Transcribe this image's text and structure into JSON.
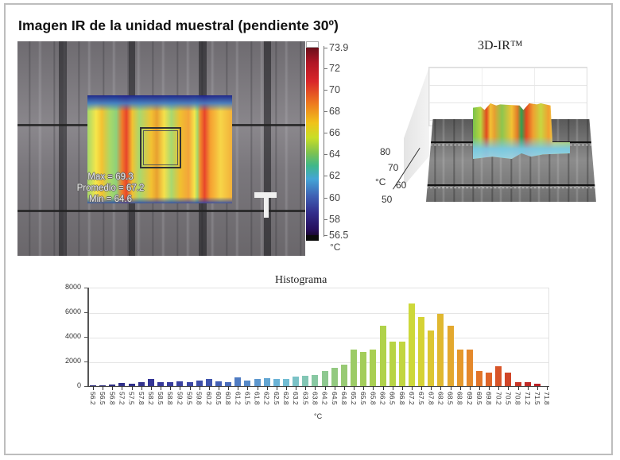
{
  "title": "Imagen IR de la unidad muestral (pendiente 30º)",
  "ir_image": {
    "stats": {
      "max": "Max = 69.3",
      "avg": "Promedio = 67.2",
      "min": "Min = 64.6"
    },
    "color_scale": {
      "ticks": [
        "73.9",
        "72",
        "70",
        "68",
        "66",
        "64",
        "62",
        "60",
        "58",
        "56.5"
      ],
      "unit": "°C",
      "max": 73.9,
      "min": 56.5
    }
  },
  "plot3d": {
    "title": "3D-IR™",
    "axis_ticks": [
      "80",
      "70",
      "60",
      "50"
    ],
    "axis_unit": "°C"
  },
  "colors": {
    "cold": "#2a1a6e",
    "mid": "#a8d870",
    "hot": "#c81f20"
  },
  "chart_data": {
    "type": "bar",
    "title": "Histograma",
    "xlabel": "°C",
    "ylabel": "",
    "ylim": [
      0,
      8000
    ],
    "yticks": [
      "8000",
      "6000",
      "4000",
      "2000",
      "0"
    ],
    "grid": true,
    "legend": null,
    "categories": [
      "56.2",
      "56.5",
      "56.8",
      "57.2",
      "57.5",
      "57.8",
      "58.2",
      "58.5",
      "58.8",
      "59.2",
      "59.5",
      "59.8",
      "60.2",
      "60.5",
      "60.8",
      "61.2",
      "61.5",
      "61.8",
      "62.2",
      "62.5",
      "62.8",
      "63.2",
      "63.5",
      "63.8",
      "64.2",
      "64.5",
      "64.8",
      "65.2",
      "65.5",
      "65.8",
      "66.2",
      "66.5",
      "66.8",
      "67.2",
      "67.5",
      "67.8",
      "68.2",
      "68.5",
      "68.8",
      "69.2",
      "69.5",
      "69.8",
      "70.2",
      "70.5",
      "70.8",
      "71.2",
      "71.5",
      "71.8"
    ],
    "values": [
      50,
      80,
      100,
      250,
      180,
      300,
      550,
      350,
      300,
      400,
      300,
      450,
      600,
      400,
      350,
      700,
      450,
      550,
      650,
      600,
      550,
      750,
      850,
      900,
      1200,
      1500,
      1750,
      3000,
      2800,
      3000,
      4900,
      3600,
      3600,
      6700,
      5600,
      4500,
      5900,
      4900,
      3000,
      3000,
      1200,
      1100,
      1600,
      1100,
      300,
      300,
      200,
      0
    ],
    "bar_colors": [
      "#2b2a7a",
      "#2b2a7a",
      "#2d2c80",
      "#30308a",
      "#30308a",
      "#33338e",
      "#343596",
      "#36399a",
      "#383d9d",
      "#3a42a0",
      "#3c47a4",
      "#3e4ea8",
      "#4055ad",
      "#4460b4",
      "#4a6dbb",
      "#4f7bc2",
      "#5689c8",
      "#5d97ce",
      "#63a6d3",
      "#6ab3d6",
      "#72bdd3",
      "#7ac2c6",
      "#82c6b4",
      "#88c8a2",
      "#8ec890",
      "#93c980",
      "#98ca74",
      "#9ccb66",
      "#a3cd5a",
      "#a9cf52",
      "#b0d24a",
      "#b8d445",
      "#c2d640",
      "#cdd83a",
      "#d5d235",
      "#dcc632",
      "#e0b830",
      "#e3a82e",
      "#e5982c",
      "#e4882b",
      "#e2762a",
      "#de6529",
      "#d85428",
      "#d04528",
      "#c83627",
      "#c02a26",
      "#b82024",
      "#b01a22"
    ]
  }
}
